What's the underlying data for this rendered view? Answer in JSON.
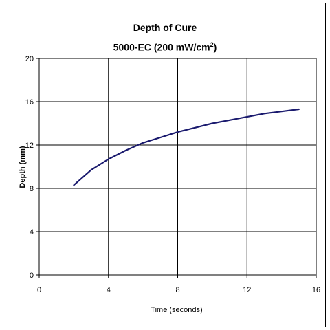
{
  "chart_data": {
    "type": "line",
    "title": "Depth of Cure",
    "subtitle_main": "5000-EC (200 mW/cm",
    "subtitle_sup": "2",
    "subtitle_end": ")",
    "xlabel": "Time (seconds)",
    "ylabel": "Depth (mm)",
    "xlim": [
      0,
      16
    ],
    "ylim": [
      0,
      20
    ],
    "xticks": [
      0,
      4,
      8,
      12,
      16
    ],
    "yticks": [
      0,
      4,
      8,
      12,
      16,
      20
    ],
    "grid": true,
    "legend": "none",
    "series": [
      {
        "x": [
          2,
          3,
          4,
          5,
          6,
          7,
          8,
          9,
          10,
          11,
          12,
          13,
          14,
          15
        ],
        "y": [
          8.3,
          9.7,
          10.7,
          11.5,
          12.2,
          12.7,
          13.2,
          13.6,
          14.0,
          14.3,
          14.6,
          14.9,
          15.1,
          15.3
        ]
      }
    ],
    "colors": {
      "line": "#1a1a6e",
      "grid": "#000000",
      "axis": "#000000"
    }
  }
}
